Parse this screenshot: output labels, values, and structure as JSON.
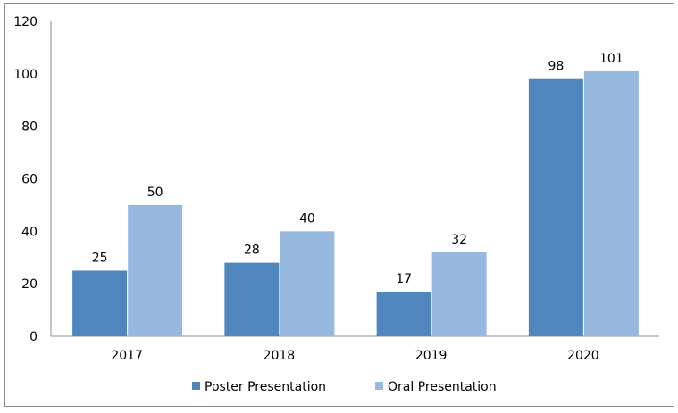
{
  "chart_data": {
    "type": "bar",
    "title": "",
    "xlabel": "",
    "ylabel": "",
    "categories": [
      "2017",
      "2018",
      "2019",
      "2020"
    ],
    "series": [
      {
        "name": "Poster Presentation",
        "values": [
          25,
          28,
          17,
          98
        ],
        "color": "#4f86bd"
      },
      {
        "name": "Oral Presentation",
        "values": [
          50,
          40,
          32,
          101
        ],
        "color": "#98b9df"
      }
    ],
    "ylim": [
      0,
      120
    ],
    "yticks": [
      0,
      20,
      40,
      60,
      80,
      100,
      120
    ],
    "grid": false,
    "legend": "bottom",
    "data_labels": true
  }
}
